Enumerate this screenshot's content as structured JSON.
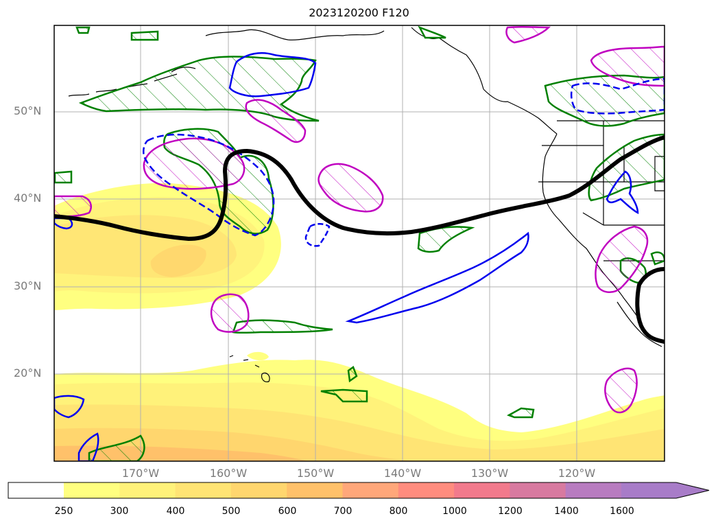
{
  "title": "2023120200 F120",
  "lat_labels": [
    "50°N",
    "40°N",
    "30°N",
    "20°N"
  ],
  "lon_labels": [
    "170°W",
    "160°W",
    "150°W",
    "140°W",
    "130°W",
    "120°W"
  ],
  "colorbar": {
    "ticks": [
      "250",
      "300",
      "400",
      "500",
      "600",
      "700",
      "800",
      "1000",
      "1200",
      "1400",
      "1600"
    ],
    "colors": [
      "#ffff80",
      "#fff27a",
      "#ffe474",
      "#ffd66e",
      "#ffc16a",
      "#ffa77a",
      "#ff8c7e",
      "#f27a8c",
      "#d87aa0",
      "#b87cc0",
      "#a87cc8"
    ],
    "extend": "max"
  },
  "colors": {
    "green_contour": "#008000",
    "magenta_contour": "#c000c0",
    "blue_contour": "#0000ee",
    "jet_line": "#000000",
    "grid": "#b0b0b0"
  }
}
